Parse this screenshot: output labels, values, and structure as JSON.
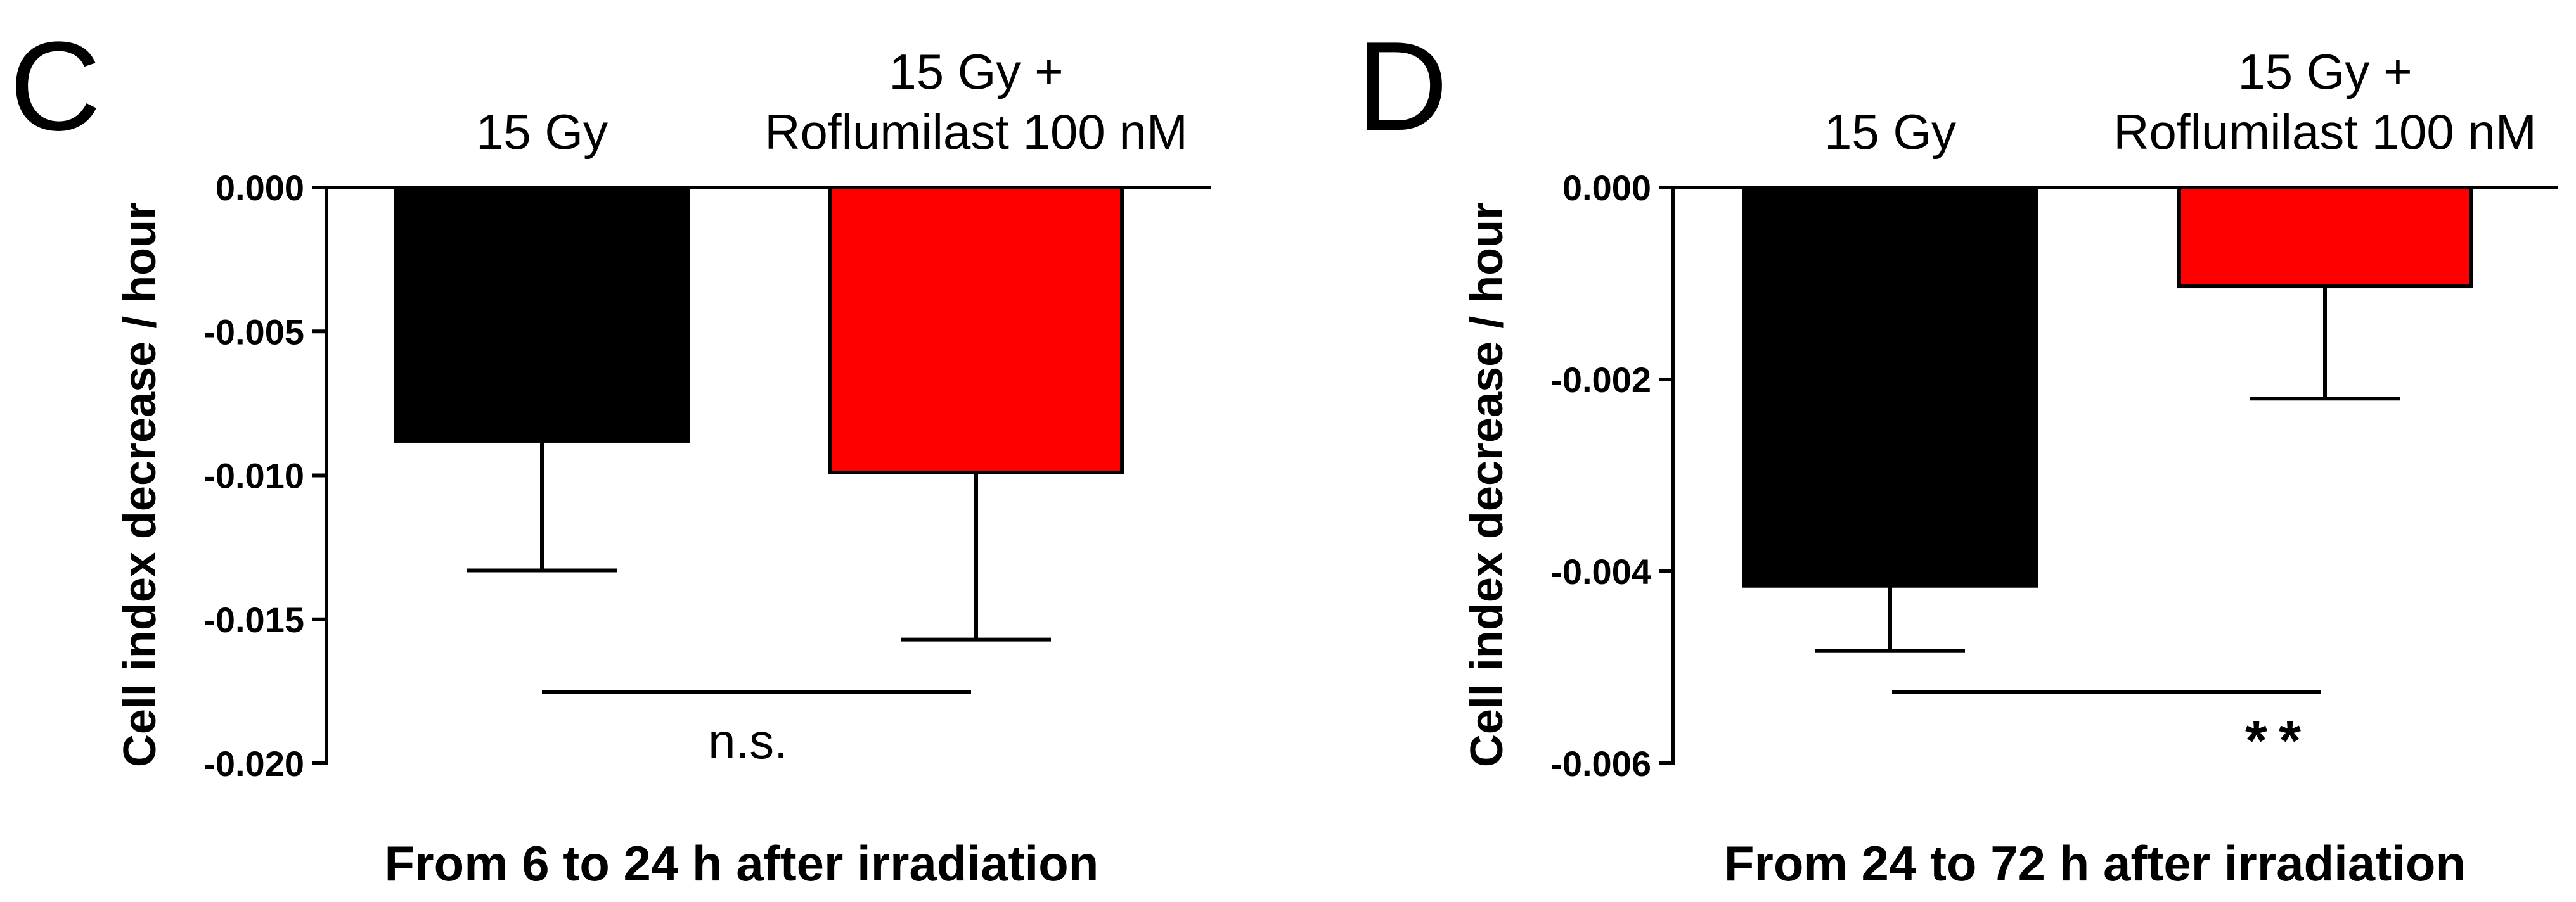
{
  "chart_data": [
    {
      "type": "bar",
      "panel_label": "C",
      "categories": [
        [
          "15 Gy"
        ],
        [
          "15 Gy +",
          "Roflumilast 100 nM"
        ]
      ],
      "values": [
        -0.0088,
        -0.0099
      ],
      "errors": [
        0.0045,
        0.0058
      ],
      "colors": [
        "#000000",
        "#ff0000"
      ],
      "ylabel": "Cell index decrease / hour",
      "xlabel": "From 6 to 24 h after irradiation",
      "ylim": [
        -0.02,
        0.0
      ],
      "yticks": [
        0.0,
        -0.005,
        -0.01,
        -0.015,
        -0.02
      ],
      "ytick_labels": [
        "0.000",
        "-0.005",
        "-0.010",
        "-0.015",
        "-0.020"
      ],
      "significance": {
        "label": "n.s.",
        "between": [
          0,
          1
        ]
      }
    },
    {
      "type": "bar",
      "panel_label": "D",
      "categories": [
        [
          "15 Gy"
        ],
        [
          "15 Gy +",
          "Roflumilast 100 nM"
        ]
      ],
      "values": [
        -0.00415,
        -0.00103
      ],
      "errors": [
        0.00068,
        0.00117
      ],
      "colors": [
        "#000000",
        "#ff0000"
      ],
      "ylabel": "Cell index decrease / hour",
      "xlabel": "From 24 to 72 h after irradiation",
      "ylim": [
        -0.006,
        0.0
      ],
      "yticks": [
        0.0,
        -0.002,
        -0.004,
        -0.006
      ],
      "ytick_labels": [
        "0.000",
        "-0.002",
        "-0.004",
        "-0.006"
      ],
      "significance": {
        "label": "**",
        "between": [
          0,
          1
        ]
      }
    }
  ]
}
